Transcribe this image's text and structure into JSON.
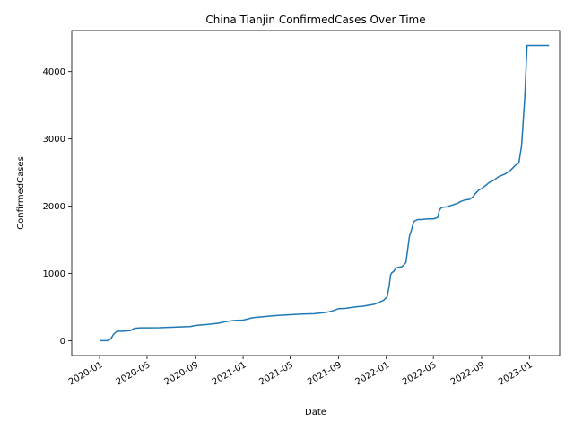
{
  "chart_data": {
    "type": "line",
    "title": "China Tianjin ConfirmedCases Over Time",
    "xlabel": "Date",
    "ylabel": "ConfirmedCases",
    "xlim": [
      "2019-10-22",
      "2023-03-19"
    ],
    "ylim": [
      -222,
      4610
    ],
    "grid": false,
    "x_ticks": [
      "2020-01",
      "2020-05",
      "2020-09",
      "2021-01",
      "2021-05",
      "2021-09",
      "2022-01",
      "2022-05",
      "2022-09",
      "2023-01"
    ],
    "y_ticks": [
      0,
      1000,
      2000,
      3000,
      4000
    ],
    "series": [
      {
        "color": "#1f77b4",
        "x": [
          "2020-01-01",
          "2020-01-20",
          "2020-01-25",
          "2020-01-31",
          "2020-02-05",
          "2020-02-12",
          "2020-02-18",
          "2020-03-01",
          "2020-03-20",
          "2020-03-27",
          "2020-04-02",
          "2020-04-15",
          "2020-05-01",
          "2020-06-01",
          "2020-07-01",
          "2020-08-01",
          "2020-08-20",
          "2020-09-01",
          "2020-10-01",
          "2020-11-01",
          "2020-11-15",
          "2020-12-10",
          "2021-01-01",
          "2021-01-25",
          "2021-03-01",
          "2021-04-01",
          "2021-05-01",
          "2021-06-01",
          "2021-07-01",
          "2021-07-25",
          "2021-08-10",
          "2021-08-20",
          "2021-09-01",
          "2021-09-20",
          "2021-10-01",
          "2021-10-20",
          "2021-11-01",
          "2021-12-01",
          "2021-12-10",
          "2021-12-25",
          "2022-01-03",
          "2022-01-08",
          "2022-01-12",
          "2022-01-15",
          "2022-01-20",
          "2022-01-25",
          "2022-02-01",
          "2022-02-10",
          "2022-02-20",
          "2022-03-01",
          "2022-03-06",
          "2022-03-12",
          "2022-03-15",
          "2022-03-18",
          "2022-03-22",
          "2022-04-01",
          "2022-04-15",
          "2022-05-01",
          "2022-05-12",
          "2022-05-16",
          "2022-05-20",
          "2022-05-26",
          "2022-06-01",
          "2022-06-15",
          "2022-07-01",
          "2022-07-10",
          "2022-07-20",
          "2022-08-01",
          "2022-08-10",
          "2022-08-15",
          "2022-08-25",
          "2022-09-01",
          "2022-09-10",
          "2022-09-20",
          "2022-10-01",
          "2022-10-15",
          "2022-11-01",
          "2022-11-15",
          "2022-11-20",
          "2022-11-25",
          "2022-11-27",
          "2022-12-05",
          "2022-12-12",
          "2022-12-20",
          "2022-12-23",
          "2022-12-26",
          "2023-01-01",
          "2023-01-20",
          "2023-02-01",
          "2023-02-20"
        ],
        "y": [
          0,
          0,
          10,
          40,
          90,
          130,
          140,
          140,
          150,
          175,
          185,
          190,
          190,
          192,
          198,
          205,
          210,
          225,
          240,
          260,
          280,
          300,
          305,
          340,
          360,
          375,
          385,
          395,
          400,
          415,
          430,
          450,
          475,
          480,
          490,
          505,
          510,
          540,
          560,
          600,
          650,
          800,
          980,
          1010,
          1030,
          1080,
          1090,
          1100,
          1160,
          1550,
          1640,
          1770,
          1780,
          1790,
          1800,
          1800,
          1810,
          1810,
          1830,
          1930,
          1970,
          1985,
          1985,
          2010,
          2040,
          2070,
          2090,
          2100,
          2140,
          2180,
          2240,
          2260,
          2300,
          2350,
          2380,
          2440,
          2480,
          2540,
          2570,
          2600,
          2610,
          2640,
          2900,
          3600,
          4000,
          4390,
          4390,
          4390,
          4390,
          4390
        ]
      }
    ]
  }
}
